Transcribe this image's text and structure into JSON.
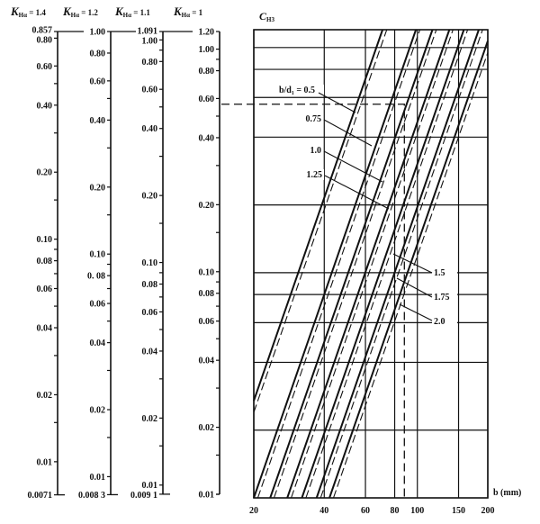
{
  "chart_data": [
    {
      "type": "table",
      "kind": "log-scale nomogram axes",
      "scales": [
        {
          "title_main": "K",
          "title_sub": "Hα",
          "title_value": " = 1.4",
          "ticks": [
            {
              "v": 0.857,
              "label": "0.857"
            },
            {
              "v": 0.8,
              "label": "0.80"
            },
            {
              "v": 0.6,
              "label": "0.60"
            },
            {
              "v": 0.4,
              "label": "0.40"
            },
            {
              "v": 0.2,
              "label": "0.20"
            },
            {
              "v": 0.1,
              "label": "0.10"
            },
            {
              "v": 0.08,
              "label": "0.08"
            },
            {
              "v": 0.06,
              "label": "0.06"
            },
            {
              "v": 0.04,
              "label": "0.04"
            },
            {
              "v": 0.02,
              "label": "0.02"
            },
            {
              "v": 0.01,
              "label": "0.01"
            },
            {
              "v": 0.0071,
              "label": "0.0071"
            }
          ],
          "minor_ticks": [
            0.5,
            0.3,
            0.15,
            0.09,
            0.07,
            0.05,
            0.03,
            0.015
          ]
        },
        {
          "title_main": "K",
          "title_sub": "Hα",
          "title_value": " = 1.2",
          "ticks": [
            {
              "v": 1.0,
              "label": "1.00"
            },
            {
              "v": 0.8,
              "label": "0.80"
            },
            {
              "v": 0.6,
              "label": "0.60"
            },
            {
              "v": 0.4,
              "label": "0.40"
            },
            {
              "v": 0.2,
              "label": "0.20"
            },
            {
              "v": 0.1,
              "label": "0.10"
            },
            {
              "v": 0.08,
              "label": "0. 08"
            },
            {
              "v": 0.06,
              "label": "0.06"
            },
            {
              "v": 0.04,
              "label": "0.04"
            },
            {
              "v": 0.02,
              "label": "0.02"
            },
            {
              "v": 0.01,
              "label": "0.01"
            },
            {
              "v": 0.0083,
              "label": "0.008 3"
            }
          ],
          "minor_ticks": [
            0.5,
            0.3,
            0.15,
            0.09,
            0.07,
            0.05,
            0.03,
            0.015
          ]
        },
        {
          "title_main": "K",
          "title_sub": "Hα",
          "title_value": " = 1.1",
          "ticks": [
            {
              "v": 1.091,
              "label": "1.091"
            },
            {
              "v": 1.0,
              "label": "1.00"
            },
            {
              "v": 0.8,
              "label": "0.80"
            },
            {
              "v": 0.6,
              "label": "0.60"
            },
            {
              "v": 0.4,
              "label": "0.40"
            },
            {
              "v": 0.2,
              "label": "0.20"
            },
            {
              "v": 0.1,
              "label": "0.10"
            },
            {
              "v": 0.08,
              "label": "0.08"
            },
            {
              "v": 0.06,
              "label": "0.06"
            },
            {
              "v": 0.04,
              "label": "0.04"
            },
            {
              "v": 0.02,
              "label": "0.02"
            },
            {
              "v": 0.01,
              "label": "0.01"
            },
            {
              "v": 0.0091,
              "label": "0.009 1"
            }
          ],
          "minor_ticks": [
            0.9,
            0.5,
            0.3,
            0.15,
            0.09,
            0.07,
            0.05,
            0.03,
            0.015
          ]
        },
        {
          "title_main": "K",
          "title_sub": "Hα",
          "title_value": " = 1",
          "ticks": [
            {
              "v": 1.2,
              "label": "1.20"
            },
            {
              "v": 1.0,
              "label": "1.00"
            },
            {
              "v": 0.8,
              "label": "0.80"
            },
            {
              "v": 0.6,
              "label": "0.60"
            },
            {
              "v": 0.4,
              "label": "0.40"
            },
            {
              "v": 0.2,
              "label": "0.20"
            },
            {
              "v": 0.1,
              "label": "0.10"
            },
            {
              "v": 0.08,
              "label": "0.08"
            },
            {
              "v": 0.06,
              "label": "0.06"
            },
            {
              "v": 0.04,
              "label": "0.04"
            },
            {
              "v": 0.02,
              "label": "0.02"
            },
            {
              "v": 0.01,
              "label": "0.01"
            }
          ],
          "minor_ticks": [
            0.9,
            0.5,
            0.3,
            0.15,
            0.09,
            0.07,
            0.05,
            0.03,
            0.015
          ]
        }
      ]
    },
    {
      "type": "line",
      "ylabel_main": "C",
      "ylabel_sub": "H3",
      "xlabel": "b (mm)",
      "x_scale": "log",
      "y_scale": "log",
      "xlim": [
        20,
        200
      ],
      "ylim": [
        0.01,
        1.2
      ],
      "x_ticks": [
        20,
        40,
        60,
        80,
        100,
        150,
        200
      ],
      "x_tick_labels": [
        "20",
        "40",
        "60",
        "80",
        "100",
        "150",
        "200"
      ],
      "y_gridlines": [
        1.0,
        0.8,
        0.6,
        0.4,
        0.2,
        0.1,
        0.08,
        0.06,
        0.04,
        0.02
      ],
      "grid": true,
      "series": [
        {
          "label": "b/d₁ = 0.5",
          "style": "solid",
          "points": [
            [
              20,
              0.027
            ],
            [
              71,
              1.2
            ]
          ]
        },
        {
          "label": "0.75",
          "style": "solid",
          "points": [
            [
              20,
              0.01
            ],
            [
              98.6,
              1.2
            ]
          ]
        },
        {
          "label": "1.0",
          "style": "solid",
          "points": [
            [
              23.5,
              0.01
            ],
            [
              116,
              1.2
            ]
          ]
        },
        {
          "label": "1.25",
          "style": "solid",
          "points": [
            [
              27.8,
              0.01
            ],
            [
              137,
              1.2
            ]
          ]
        },
        {
          "label": "1.5",
          "style": "solid",
          "points": [
            [
              32.1,
              0.01
            ],
            [
              158,
              1.2
            ]
          ]
        },
        {
          "label": "1.75",
          "style": "solid",
          "points": [
            [
              37.1,
              0.01
            ],
            [
              183,
              1.2
            ]
          ]
        },
        {
          "label": "2.0",
          "style": "solid",
          "points": [
            [
              42.1,
              0.01
            ],
            [
              200,
              1.07
            ]
          ]
        },
        {
          "style": "dashed",
          "points": [
            [
              20,
              0.024
            ],
            [
              74,
              1.2
            ]
          ]
        },
        {
          "style": "dashed",
          "points": [
            [
              20.8,
              0.01
            ],
            [
              102.5,
              1.2
            ]
          ]
        },
        {
          "style": "dashed",
          "points": [
            [
              24.4,
              0.01
            ],
            [
              120.5,
              1.2
            ]
          ]
        },
        {
          "style": "dashed",
          "points": [
            [
              28.9,
              0.01
            ],
            [
              142,
              1.2
            ]
          ]
        },
        {
          "style": "dashed",
          "points": [
            [
              33.4,
              0.01
            ],
            [
              164,
              1.2
            ]
          ]
        },
        {
          "style": "dashed",
          "points": [
            [
              38.6,
              0.01
            ],
            [
              190,
              1.2
            ]
          ]
        },
        {
          "style": "dashed",
          "points": [
            [
              43.8,
              0.01
            ],
            [
              200,
              0.95
            ]
          ]
        }
      ],
      "example_path": {
        "C": 0.56,
        "b": 88
      }
    }
  ]
}
